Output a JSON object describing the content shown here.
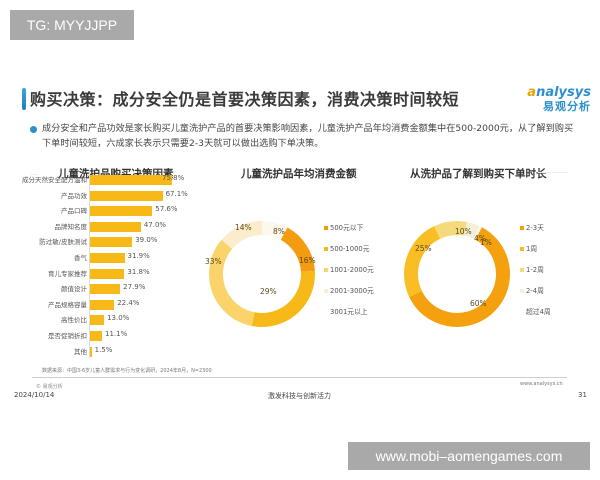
{
  "watermarks": {
    "top": "TG: MYYJJPP",
    "bottom": "www.mobi–aomengames.com"
  },
  "header": {
    "title": "购买决策：成分安全仍是首要决策因素，消费决策时间较短",
    "logo_en_a": "a",
    "logo_en_rest": "nalysys",
    "logo_cn": "易观分析"
  },
  "summary": "成分安全和产品功效是家长购买儿童洗护产品的首要决策影响因素，儿童洗护产品年均消费金额集中在500-2000元，从了解到购买下单时间较短，六成家长表示只需要2-3天就可以做出选购下单决策。",
  "colors": {
    "accent_blue": "#2c8fcf",
    "bar_yellow": "#f6b918"
  },
  "chart_data": [
    {
      "type": "bar",
      "orientation": "horizontal",
      "title": "儿童洗护品购买决策因素",
      "categories": [
        "成分天然安全配方温和",
        "产品功效",
        "产品口碑",
        "品牌知名度",
        "防过敏/皮肤测试",
        "香气",
        "育儿专家推荐",
        "颜值设计",
        "产品规格容量",
        "高性价比",
        "是否促销折扣",
        "其他"
      ],
      "values": [
        75.8,
        67.1,
        57.6,
        47.0,
        39.0,
        31.9,
        31.8,
        27.9,
        22.4,
        13.0,
        11.1,
        1.5
      ],
      "labels": [
        "75.8%",
        "67.1%",
        "57.6%",
        "47.0%",
        "39.0%",
        "31.9%",
        "31.8%",
        "27.9%",
        "22.4%",
        "13.0%",
        "11.1%",
        "1.5%"
      ],
      "unit": "%",
      "xlabel": "",
      "ylabel": "",
      "color": "#f6b918"
    },
    {
      "type": "pie",
      "donut": true,
      "title": "儿童洗护品年均消费金额",
      "categories": [
        "500元以下",
        "500-1000元",
        "1001-2000元",
        "2001-3000元",
        "3001元以上"
      ],
      "values": [
        16,
        29,
        33,
        14,
        8
      ],
      "labels": [
        "16%",
        "29%",
        "33%",
        "14%",
        "8%"
      ],
      "colors": [
        "#f39c12",
        "#f6b918",
        "#fad46a",
        "#fbeccc",
        "#fdf7ec"
      ],
      "legend_position": "right"
    },
    {
      "type": "pie",
      "donut": true,
      "title": "从洗护品了解到购买下单时长",
      "categories": [
        "2-3天",
        "1周",
        "1-2周",
        "2-4周",
        "超过4周"
      ],
      "values": [
        60,
        25,
        10,
        4,
        1
      ],
      "labels": [
        "60%",
        "25%",
        "10%",
        "4%",
        "1%"
      ],
      "colors": [
        "#f5a00f",
        "#f8be23",
        "#f5da7c",
        "#f4efd8",
        "#faf6ea"
      ],
      "legend_position": "right"
    }
  ],
  "footer": {
    "source": "数据来源：中国3-6岁儿童人群需求与行为变化调研，2024年8月，N=2300",
    "copyright": "© 易观分析",
    "website": "www.analysys.cn",
    "date": "2024/10/14",
    "tagline": "激发科技与创新活力",
    "page_number": "31"
  }
}
